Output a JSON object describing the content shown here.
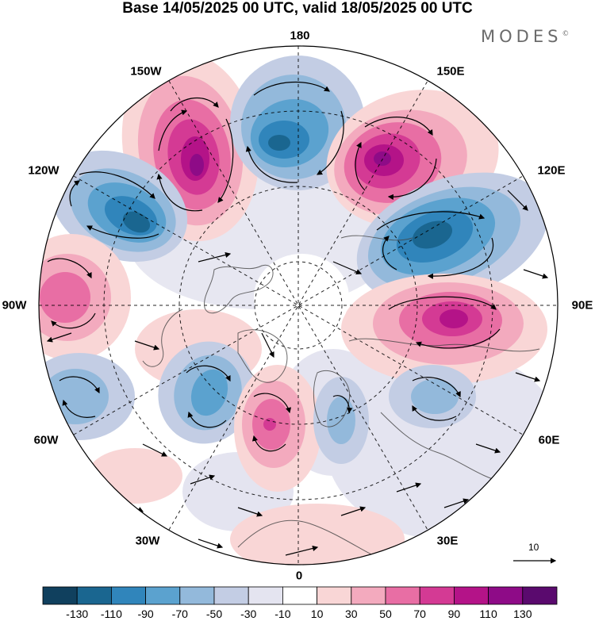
{
  "title": "Base 14/05/2025 00 UTC, valid 18/05/2025 00 UTC",
  "logo": "MODES",
  "logo_mark": "©",
  "longitude_labels": {
    "top": "180",
    "top_left": "150W",
    "top_right": "150E",
    "upper_left": "120W",
    "upper_right": "120E",
    "left": "90W",
    "right": "90E",
    "lower_left": "60W",
    "lower_right": "60E",
    "bottom_left": "30W",
    "bottom_right": "30E",
    "bottom": "0"
  },
  "vector_reference": "10",
  "colorbar": {
    "labels": [
      "-130",
      "-110",
      "-90",
      "-70",
      "-50",
      "-30",
      "-10",
      "10",
      "30",
      "50",
      "70",
      "90",
      "110",
      "130"
    ],
    "colors": [
      "#10405e",
      "#1a6690",
      "#3085bb",
      "#5ba2cf",
      "#93b9db",
      "#c3cde4",
      "#e4e4f0",
      "#ffffff",
      "#f9d6d6",
      "#f3aabe",
      "#e86ea4",
      "#d43a94",
      "#b41388",
      "#8e0b87",
      "#5a0a6e"
    ]
  },
  "colors": {
    "blue_strong": "#1a6690",
    "blue_mid": "#3085bb",
    "blue_light": "#93b9db",
    "pink_light": "#f9d6d6",
    "pink_mid": "#e86ea4",
    "magenta": "#b41388",
    "purple": "#8e0b87"
  }
}
